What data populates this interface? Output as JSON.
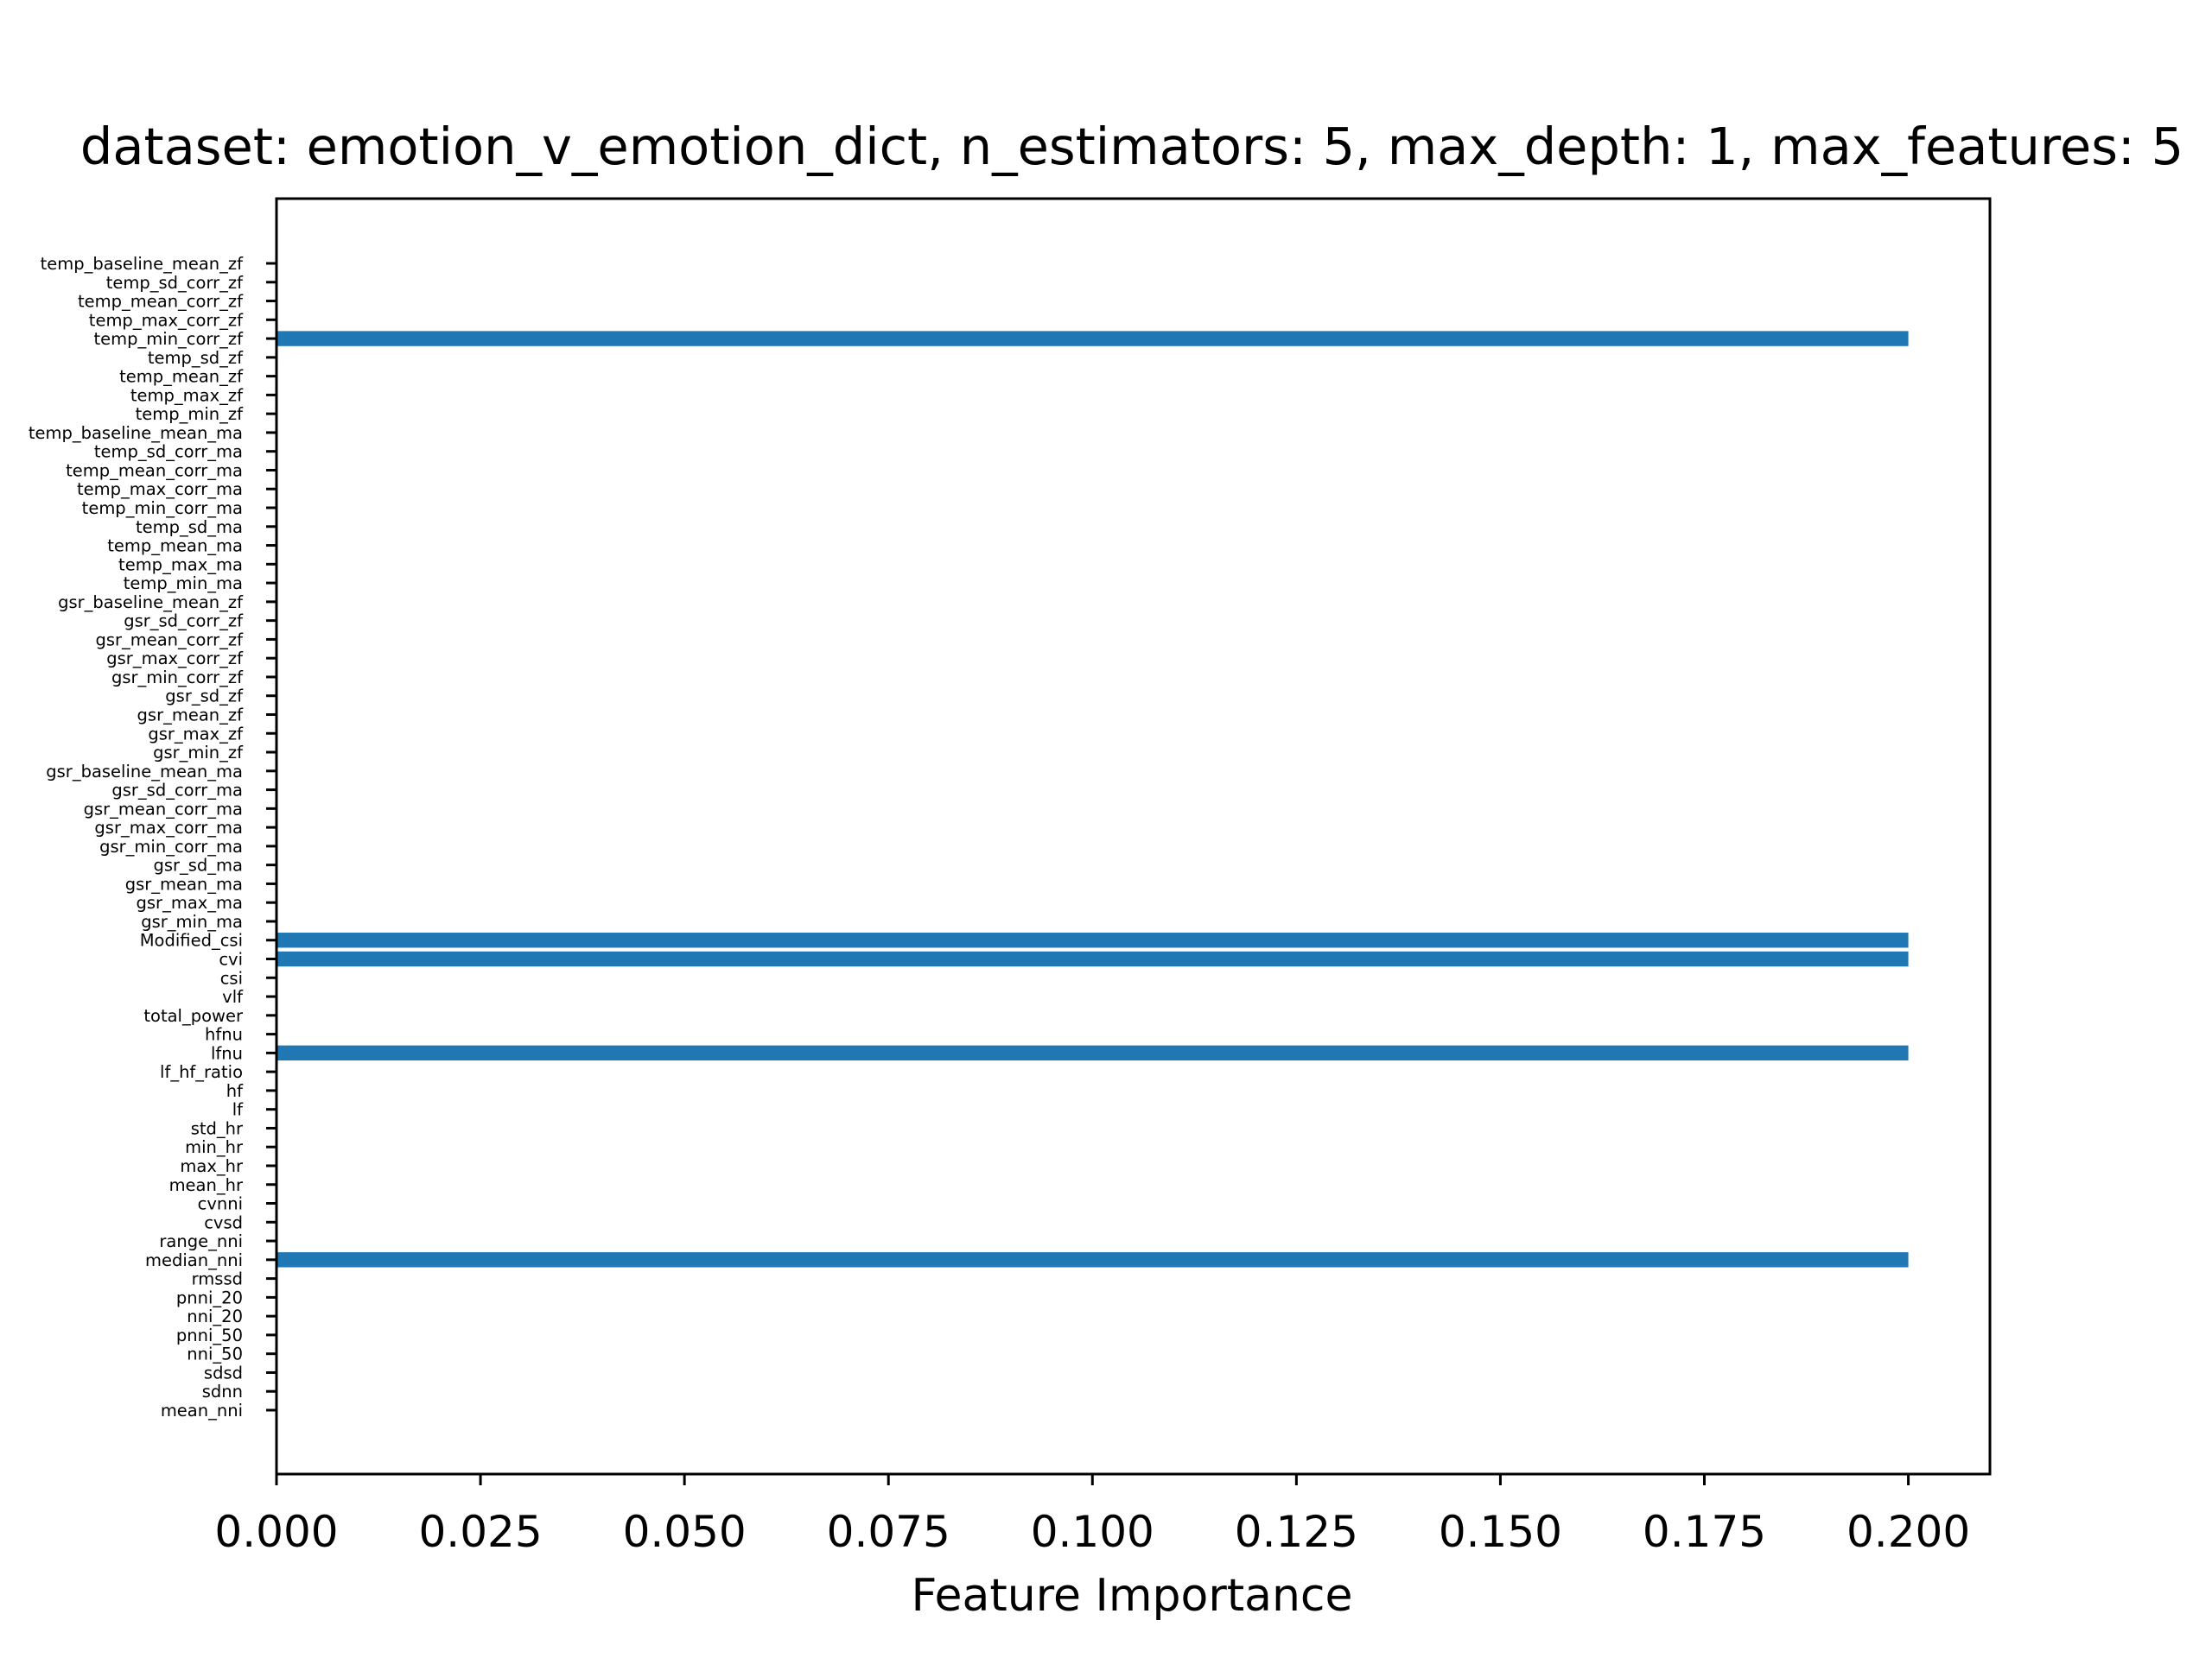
{
  "chart_data": {
    "type": "bar",
    "orientation": "horizontal",
    "title": "dataset: emotion_v_emotion_dict, n_estimators: 5, max_depth: 1, max_features: 5",
    "xlabel": "Feature Importance",
    "ylabel": "",
    "xlim": [
      0,
      0.21
    ],
    "xticks": [
      "0.000",
      "0.025",
      "0.050",
      "0.075",
      "0.100",
      "0.125",
      "0.150",
      "0.175",
      "0.200"
    ],
    "grid": false,
    "bar_color": "#1f77b4",
    "categories": [
      "mean_nni",
      "sdnn",
      "sdsd",
      "nni_50",
      "pnni_50",
      "nni_20",
      "pnni_20",
      "rmssd",
      "median_nni",
      "range_nni",
      "cvsd",
      "cvnni",
      "mean_hr",
      "max_hr",
      "min_hr",
      "std_hr",
      "lf",
      "hf",
      "lf_hf_ratio",
      "lfnu",
      "hfnu",
      "total_power",
      "vlf",
      "csi",
      "cvi",
      "Modified_csi",
      "gsr_min_ma",
      "gsr_max_ma",
      "gsr_mean_ma",
      "gsr_sd_ma",
      "gsr_min_corr_ma",
      "gsr_max_corr_ma",
      "gsr_mean_corr_ma",
      "gsr_sd_corr_ma",
      "gsr_baseline_mean_ma",
      "gsr_min_zf",
      "gsr_max_zf",
      "gsr_mean_zf",
      "gsr_sd_zf",
      "gsr_min_corr_zf",
      "gsr_max_corr_zf",
      "gsr_mean_corr_zf",
      "gsr_sd_corr_zf",
      "gsr_baseline_mean_zf",
      "temp_min_ma",
      "temp_max_ma",
      "temp_mean_ma",
      "temp_sd_ma",
      "temp_min_corr_ma",
      "temp_max_corr_ma",
      "temp_mean_corr_ma",
      "temp_sd_corr_ma",
      "temp_baseline_mean_ma",
      "temp_min_zf",
      "temp_max_zf",
      "temp_mean_zf",
      "temp_sd_zf",
      "temp_min_corr_zf",
      "temp_max_corr_zf",
      "temp_mean_corr_zf",
      "temp_sd_corr_zf",
      "temp_baseline_mean_zf"
    ],
    "values": [
      0,
      0,
      0,
      0,
      0,
      0,
      0,
      0,
      0.2,
      0,
      0,
      0,
      0,
      0,
      0,
      0,
      0,
      0,
      0,
      0.2,
      0,
      0,
      0,
      0,
      0.2,
      0.2,
      0,
      0,
      0,
      0,
      0,
      0,
      0,
      0,
      0,
      0,
      0,
      0,
      0,
      0,
      0,
      0,
      0,
      0,
      0,
      0,
      0,
      0,
      0,
      0,
      0,
      0,
      0,
      0,
      0,
      0,
      0,
      0.2,
      0,
      0,
      0,
      0
    ]
  }
}
